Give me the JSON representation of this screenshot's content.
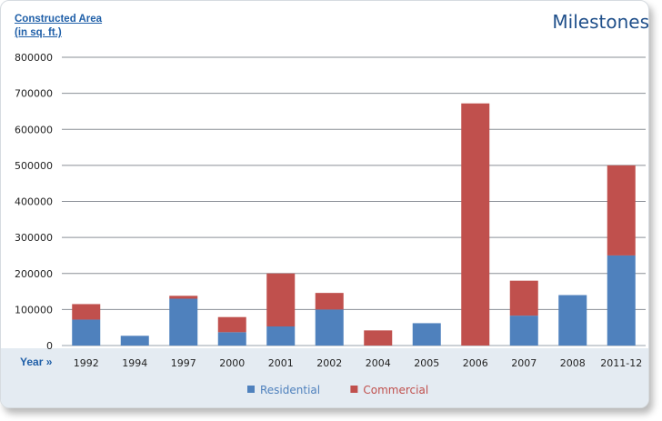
{
  "header": {
    "title": "Milestones"
  },
  "chart_data": {
    "type": "bar",
    "stacked": true,
    "title": "",
    "ylabel_line1": "Constructed Area",
    "ylabel_line2": "(in sq. ft.)",
    "xlabel": "Year »",
    "ylim": [
      0,
      800000
    ],
    "yticks": [
      "0",
      "100000",
      "200000",
      "300000",
      "400000",
      "500000",
      "600000",
      "700000",
      "800000"
    ],
    "grid": "horizontal",
    "legend_position": "bottom",
    "categories": [
      "1992",
      "1994",
      "1997",
      "2000",
      "2001",
      "2002",
      "2004",
      "2005",
      "2006",
      "2007",
      "2008",
      "2011-12"
    ],
    "series": [
      {
        "name": "Residential",
        "color": "#4f81bd",
        "values": [
          72000,
          27000,
          130000,
          37000,
          53000,
          100000,
          0,
          62000,
          0,
          83000,
          140000,
          250000
        ]
      },
      {
        "name": "Commercial",
        "color": "#c0504d",
        "values": [
          43000,
          0,
          8000,
          42000,
          147000,
          46000,
          42000,
          0,
          672000,
          97000,
          0,
          250000
        ]
      }
    ]
  }
}
